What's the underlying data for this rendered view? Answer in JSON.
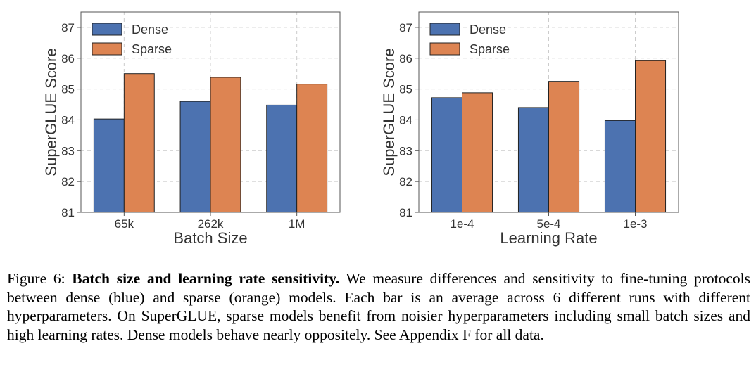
{
  "colors": {
    "dense": "#4c72b0",
    "sparse": "#dd8452",
    "grid": "#cccccc",
    "axis": "#555555"
  },
  "chart_data": [
    {
      "type": "bar",
      "xlabel": "Batch Size",
      "ylabel": "SuperGLUE Score",
      "categories": [
        "65k",
        "262k",
        "1M"
      ],
      "series": [
        {
          "name": "Dense",
          "values": [
            84.03,
            84.6,
            84.48
          ]
        },
        {
          "name": "Sparse",
          "values": [
            85.5,
            85.38,
            85.16
          ]
        }
      ],
      "ylim": [
        81,
        87.5
      ],
      "yticks": [
        "81",
        "82",
        "83",
        "84",
        "85",
        "86",
        "87"
      ],
      "legend": "top-left",
      "grid": true
    },
    {
      "type": "bar",
      "xlabel": "Learning Rate",
      "ylabel": "SuperGLUE Score",
      "categories": [
        "1e-4",
        "5e-4",
        "1e-3"
      ],
      "series": [
        {
          "name": "Dense",
          "values": [
            84.72,
            84.4,
            83.98
          ]
        },
        {
          "name": "Sparse",
          "values": [
            84.88,
            85.25,
            85.92
          ]
        }
      ],
      "ylim": [
        81,
        87.5
      ],
      "yticks": [
        "81",
        "82",
        "83",
        "84",
        "85",
        "86",
        "87"
      ],
      "legend": "top-left",
      "grid": true
    }
  ],
  "caption": {
    "label": "Figure 6: ",
    "title": "Batch size and learning rate sensitivity.",
    "body": " We measure differences and sensitivity to fine-tuning protocols between dense (blue) and sparse (orange) models. Each bar is an average across 6 different runs with different hyperparameters. On SuperGLUE, sparse models benefit from noisier hyperparameters including small batch sizes and high learning rates. Dense models behave nearly oppositely. See Appendix F for all data."
  }
}
